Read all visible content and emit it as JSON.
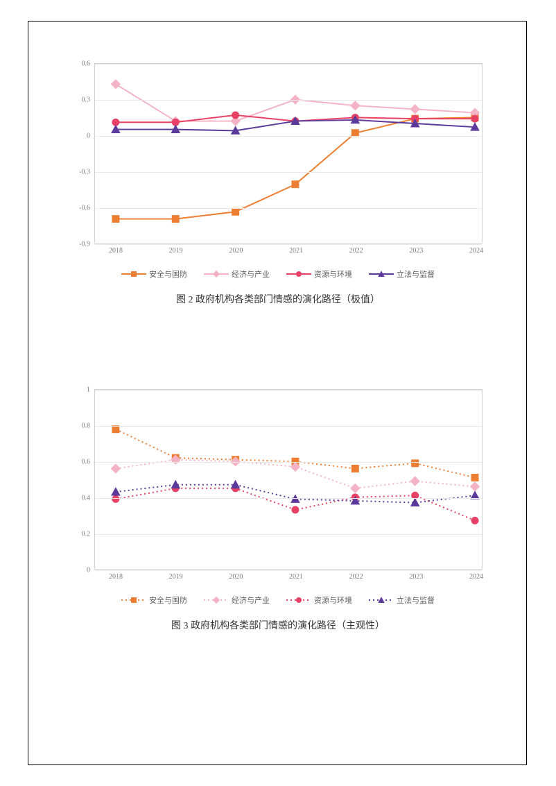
{
  "page": {
    "background_color": "#ffffff",
    "border_color": "#000000"
  },
  "chart1": {
    "type": "line",
    "caption": "图 2  政府机构各类部门情感的演化路径（极值）",
    "categories": [
      "2018",
      "2019",
      "2020",
      "2021",
      "2022",
      "2023",
      "2024"
    ],
    "ylim": [
      -0.9,
      0.6
    ],
    "ytick_step": 0.3,
    "yticks": [
      "0.6",
      "0.3",
      "0",
      "-0.3",
      "-0.6",
      "-0.9"
    ],
    "grid_color": "#e8e8e8",
    "plot_border_color": "#d0d0d0",
    "label_fontsize": 10,
    "label_color": "#7a7a7a",
    "line_style": "solid",
    "line_width": 2,
    "marker_size": 5,
    "series": [
      {
        "name": "安全与国防",
        "color": "#ed7d31",
        "marker": "square",
        "values": [
          -0.7,
          -0.7,
          -0.64,
          -0.41,
          0.02,
          0.14,
          0.15
        ]
      },
      {
        "name": "经济与产业",
        "color": "#f4b2c5",
        "marker": "diamond",
        "values": [
          0.43,
          0.12,
          0.12,
          0.3,
          0.25,
          0.22,
          0.19
        ]
      },
      {
        "name": "资源与环境",
        "color": "#e74265",
        "marker": "circle",
        "values": [
          0.11,
          0.11,
          0.17,
          0.12,
          0.15,
          0.14,
          0.14
        ]
      },
      {
        "name": "立法与监督",
        "color": "#5b3a9b",
        "marker": "triangle",
        "values": [
          0.05,
          0.05,
          0.04,
          0.12,
          0.13,
          0.1,
          0.07
        ]
      }
    ]
  },
  "chart2": {
    "type": "line",
    "caption": "图 3  政府机构各类部门情感的演化路径（主观性）",
    "categories": [
      "2018",
      "2019",
      "2020",
      "2021",
      "2022",
      "2023",
      "2024"
    ],
    "ylim": [
      0,
      1
    ],
    "ytick_step": 0.2,
    "yticks": [
      "1",
      "0.8",
      "0.6",
      "0.4",
      "0.2",
      "0"
    ],
    "grid_color": "#e8e8e8",
    "plot_border_color": "#d0d0d0",
    "label_fontsize": 10,
    "label_color": "#7a7a7a",
    "line_style": "dotted",
    "line_width": 2,
    "marker_size": 5,
    "series": [
      {
        "name": "安全与国防",
        "color": "#ed7d31",
        "marker": "square",
        "values": [
          0.78,
          0.62,
          0.61,
          0.6,
          0.56,
          0.59,
          0.51
        ]
      },
      {
        "name": "经济与产业",
        "color": "#f4b2c5",
        "marker": "diamond",
        "values": [
          0.56,
          0.61,
          0.6,
          0.57,
          0.45,
          0.49,
          0.46
        ]
      },
      {
        "name": "资源与环境",
        "color": "#e74265",
        "marker": "circle",
        "values": [
          0.39,
          0.45,
          0.45,
          0.33,
          0.4,
          0.41,
          0.27
        ]
      },
      {
        "name": "立法与监督",
        "color": "#5b3a9b",
        "marker": "triangle",
        "values": [
          0.43,
          0.47,
          0.47,
          0.39,
          0.38,
          0.37,
          0.41
        ]
      }
    ]
  }
}
